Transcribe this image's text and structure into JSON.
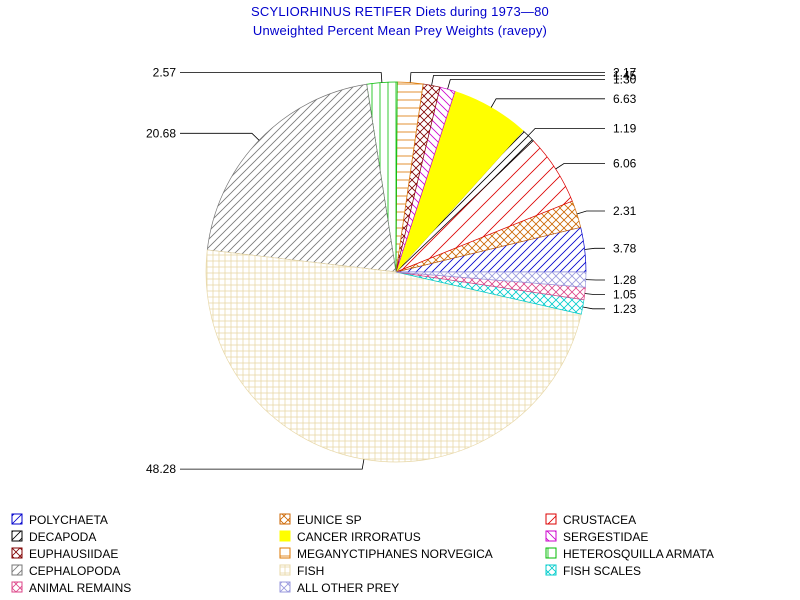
{
  "title": "SCYLIORHINUS RETIFER Diets during 1973—80",
  "subtitle": "Unweighted Percent Mean Prey Weights (ravepy)",
  "chart_data": {
    "type": "pie",
    "start_angle_deg": 0,
    "direction": "counterclockwise",
    "slices": [
      {
        "name": "POLYCHAETA",
        "value": 3.78,
        "label": "3.78",
        "color": "#0000cc",
        "pattern": "diag-up"
      },
      {
        "name": "EUNICE SP",
        "value": 2.31,
        "label": "2.31",
        "color": "#cc6600",
        "pattern": "cross-diag"
      },
      {
        "name": "CRUSTACEA",
        "value": 6.06,
        "label": "6.06",
        "color": "#dd0000",
        "pattern": "diag-up-sparse"
      },
      {
        "name": "DECAPODA",
        "value": 1.19,
        "label": "1.19",
        "color": "#000000",
        "pattern": "diag-up"
      },
      {
        "name": "CANCER IRRORATUS",
        "value": 6.63,
        "label": "6.63",
        "color": "#ffff00",
        "pattern": "solid"
      },
      {
        "name": "SERGESTIDAE",
        "value": 1.3,
        "label": "1.30",
        "color": "#cc00cc",
        "pattern": "diag-down"
      },
      {
        "name": "EUPHAUSIIDAE",
        "value": 1.45,
        "label": "1.45",
        "color": "#800000",
        "pattern": "cross-diag"
      },
      {
        "name": "MEGANYCTIPHANES NORVEGICA",
        "value": 2.17,
        "label": "2.17",
        "color": "#dd7700",
        "pattern": "horizontal"
      },
      {
        "name": "HETEROSQUILLA ARMATA",
        "value": 2.57,
        "label": "2.57",
        "color": "#00bb00",
        "pattern": "vertical"
      },
      {
        "name": "CEPHALOPODA",
        "value": 20.68,
        "label": "20.68",
        "color": "#777777",
        "pattern": "diag-up"
      },
      {
        "name": "FISH",
        "value": 48.28,
        "label": "48.28",
        "color": "#e8d8a8",
        "pattern": "grid"
      },
      {
        "name": "FISH SCALES",
        "value": 1.23,
        "label": "1.23",
        "color": "#00cccc",
        "pattern": "cross-diag"
      },
      {
        "name": "ANIMAL REMAINS",
        "value": 1.05,
        "label": "1.05",
        "color": "#dd4488",
        "pattern": "cross-diag"
      },
      {
        "name": "ALL OTHER PREY",
        "value": 1.28,
        "label": "1.28",
        "color": "#9999dd",
        "pattern": "cross-diag"
      }
    ],
    "legend_placement": "bottom"
  }
}
